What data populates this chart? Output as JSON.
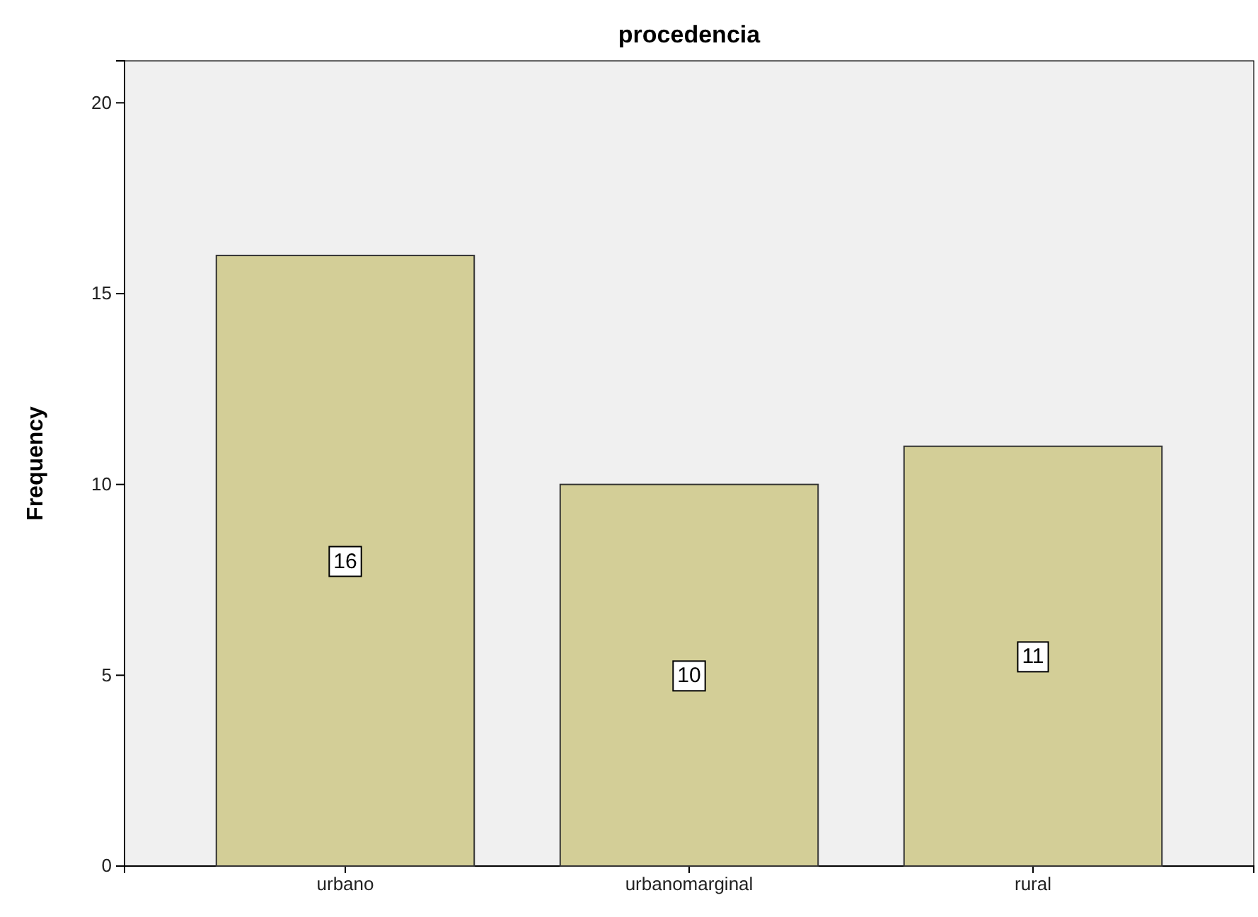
{
  "chart_data": {
    "type": "bar",
    "title": "procedencia",
    "ylabel": "Frequency",
    "categories": [
      "urbano",
      "urbanomarginal",
      "rural"
    ],
    "values": [
      16,
      10,
      11
    ],
    "color": "#d3ce97",
    "ylim": [
      0,
      21.1
    ],
    "yticks": [
      0,
      5,
      10,
      15,
      20
    ],
    "grid": false,
    "data_labels": true
  }
}
